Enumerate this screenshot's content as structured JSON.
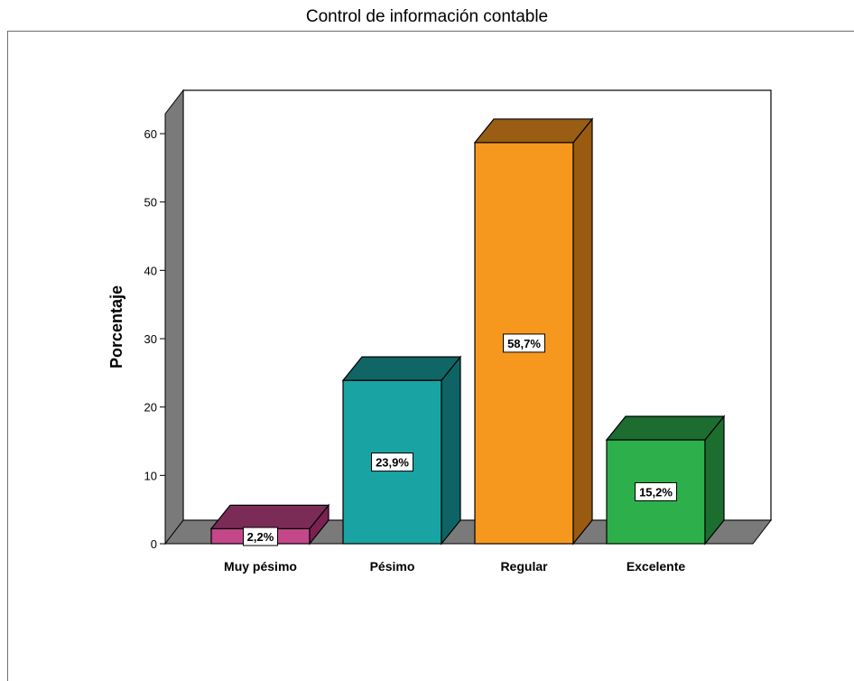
{
  "chart_data": {
    "type": "bar",
    "title": "Control de información contable",
    "xlabel": "",
    "ylabel": "Porcentaje",
    "ylim": [
      0,
      60
    ],
    "yticks": [
      0,
      10,
      20,
      30,
      40,
      50,
      60
    ],
    "categories": [
      "Muy pésimo",
      "Pésimo",
      "Regular",
      "Excelente"
    ],
    "values": [
      2.2,
      23.9,
      58.7,
      15.2
    ],
    "data_labels": [
      "2,2%",
      "23,9%",
      "58,7%",
      "15,2%"
    ],
    "colors": [
      "#c4478a",
      "#1aa3a3",
      "#f7981e",
      "#2db04b"
    ],
    "side_colors": [
      "#7a2151",
      "#0e6464",
      "#9a5a10",
      "#1c6e2f"
    ],
    "style": "3d",
    "grid": false
  }
}
